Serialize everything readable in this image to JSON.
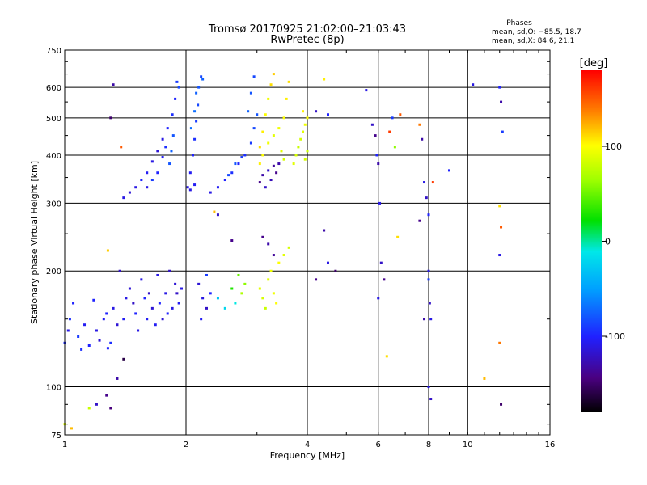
{
  "chart_data": {
    "type": "scatter",
    "title": "Tromsø 20170925 21:02:00–21:03:43",
    "subtitle": "RwPretec (8p)",
    "xlabel": "Frequency [MHz]",
    "ylabel": "Stationary phase Virtual Height [km]",
    "x_scale": "log",
    "y_scale": "log",
    "xlim": [
      1,
      16
    ],
    "ylim": [
      75,
      750
    ],
    "x_ticks": [
      1,
      2,
      4,
      6,
      8,
      10,
      16
    ],
    "y_ticks": [
      75,
      100,
      200,
      300,
      400,
      500,
      600,
      750
    ],
    "grid": true,
    "phase_info": {
      "heading": "Phases",
      "line_o": "mean, sd,O: −85.5, 18.7",
      "line_x": "mean, sd,X:  84.6, 21.1"
    },
    "colorbar": {
      "label": "[deg]",
      "range": [
        -180,
        180
      ],
      "ticks": [
        100,
        0,
        -100
      ]
    },
    "points": [
      [
        1.0,
        130,
        -95
      ],
      [
        1.02,
        140,
        -110
      ],
      [
        1.05,
        165,
        -100
      ],
      [
        1.03,
        150,
        -95
      ],
      [
        1.08,
        135,
        -90
      ],
      [
        1.1,
        125,
        -95
      ],
      [
        1.12,
        145,
        -105
      ],
      [
        1.15,
        128,
        -100
      ],
      [
        1.18,
        168,
        -100
      ],
      [
        1.2,
        140,
        -110
      ],
      [
        1.22,
        132,
        -115
      ],
      [
        1.25,
        150,
        -105
      ],
      [
        1.27,
        155,
        -100
      ],
      [
        1.28,
        126,
        -100
      ],
      [
        1.3,
        130,
        -95
      ],
      [
        1.32,
        160,
        -110
      ],
      [
        1.35,
        145,
        -115
      ],
      [
        1.37,
        200,
        -120
      ],
      [
        1.4,
        150,
        -105
      ],
      [
        1.42,
        170,
        -110
      ],
      [
        1.45,
        180,
        -115
      ],
      [
        1.48,
        165,
        -120
      ],
      [
        1.5,
        155,
        -100
      ],
      [
        1.52,
        140,
        -110
      ],
      [
        1.55,
        190,
        -110
      ],
      [
        1.58,
        170,
        -100
      ],
      [
        1.6,
        150,
        -105
      ],
      [
        1.62,
        175,
        -120
      ],
      [
        1.65,
        160,
        -115
      ],
      [
        1.68,
        145,
        -105
      ],
      [
        1.7,
        195,
        -110
      ],
      [
        1.72,
        165,
        -100
      ],
      [
        1.75,
        150,
        -115
      ],
      [
        1.78,
        175,
        -110
      ],
      [
        1.8,
        155,
        -100
      ],
      [
        1.82,
        200,
        -120
      ],
      [
        1.85,
        160,
        -110
      ],
      [
        1.88,
        185,
        -115
      ],
      [
        1.9,
        175,
        -120
      ],
      [
        1.92,
        165,
        -105
      ],
      [
        1.95,
        180,
        -110
      ],
      [
        1.27,
        95,
        -140
      ],
      [
        1.3,
        88,
        -145
      ],
      [
        1.35,
        105,
        -130
      ],
      [
        1.4,
        118,
        -160
      ],
      [
        1.2,
        90,
        -120
      ],
      [
        1.0,
        80,
        90
      ],
      [
        1.04,
        78,
        120
      ],
      [
        1.15,
        88,
        80
      ],
      [
        1.28,
        226,
        115
      ],
      [
        1.32,
        610,
        -130
      ],
      [
        1.38,
        420,
        150
      ],
      [
        1.3,
        500,
        -150
      ],
      [
        1.4,
        310,
        -110
      ],
      [
        1.45,
        320,
        -115
      ],
      [
        1.5,
        330,
        -110
      ],
      [
        1.55,
        345,
        -100
      ],
      [
        1.6,
        360,
        -105
      ],
      [
        1.65,
        385,
        -110
      ],
      [
        1.7,
        410,
        -115
      ],
      [
        1.75,
        440,
        -110
      ],
      [
        1.8,
        470,
        -100
      ],
      [
        1.85,
        510,
        -95
      ],
      [
        1.88,
        560,
        -100
      ],
      [
        1.9,
        620,
        -90
      ],
      [
        1.92,
        600,
        -85
      ],
      [
        1.84,
        410,
        -75
      ],
      [
        1.82,
        380,
        -80
      ],
      [
        1.7,
        360,
        -100
      ],
      [
        1.75,
        395,
        -105
      ],
      [
        1.6,
        330,
        -110
      ],
      [
        1.65,
        345,
        -90
      ],
      [
        1.78,
        420,
        -95
      ],
      [
        1.86,
        450,
        -80
      ],
      [
        2.02,
        330,
        -110
      ],
      [
        2.05,
        360,
        -105
      ],
      [
        2.08,
        400,
        -100
      ],
      [
        2.1,
        440,
        -95
      ],
      [
        2.12,
        490,
        -90
      ],
      [
        2.14,
        540,
        -85
      ],
      [
        2.15,
        600,
        -80
      ],
      [
        2.2,
        630,
        -75
      ],
      [
        2.06,
        470,
        -70
      ],
      [
        2.1,
        520,
        -70
      ],
      [
        2.12,
        580,
        -75
      ],
      [
        2.18,
        640,
        -85
      ],
      [
        2.05,
        325,
        -110
      ],
      [
        2.1,
        335,
        -105
      ],
      [
        2.15,
        185,
        -115
      ],
      [
        2.2,
        170,
        -110
      ],
      [
        2.25,
        160,
        -120
      ],
      [
        2.3,
        175,
        -100
      ],
      [
        2.18,
        150,
        -105
      ],
      [
        2.25,
        195,
        -90
      ],
      [
        2.3,
        320,
        -110
      ],
      [
        2.4,
        330,
        -105
      ],
      [
        2.5,
        345,
        -100
      ],
      [
        2.6,
        360,
        -95
      ],
      [
        2.7,
        380,
        -100
      ],
      [
        2.8,
        400,
        -95
      ],
      [
        2.9,
        430,
        -90
      ],
      [
        2.95,
        470,
        -85
      ],
      [
        3.0,
        510,
        -80
      ],
      [
        2.85,
        520,
        -75
      ],
      [
        2.9,
        580,
        -80
      ],
      [
        2.95,
        640,
        -85
      ],
      [
        2.75,
        395,
        -90
      ],
      [
        2.65,
        380,
        -80
      ],
      [
        2.55,
        355,
        -85
      ],
      [
        2.4,
        170,
        -30
      ],
      [
        2.5,
        160,
        -20
      ],
      [
        2.6,
        180,
        30
      ],
      [
        2.7,
        195,
        50
      ],
      [
        2.75,
        175,
        70
      ],
      [
        2.8,
        185,
        60
      ],
      [
        2.65,
        165,
        -10
      ],
      [
        2.35,
        285,
        120
      ],
      [
        2.4,
        280,
        -120
      ],
      [
        2.6,
        240,
        -140
      ],
      [
        3.05,
        420,
        110
      ],
      [
        3.1,
        460,
        105
      ],
      [
        3.15,
        510,
        100
      ],
      [
        3.2,
        560,
        95
      ],
      [
        3.25,
        610,
        110
      ],
      [
        3.3,
        650,
        115
      ],
      [
        3.05,
        380,
        105
      ],
      [
        3.1,
        400,
        100
      ],
      [
        3.2,
        430,
        95
      ],
      [
        3.3,
        450,
        90
      ],
      [
        3.4,
        470,
        95
      ],
      [
        3.5,
        500,
        100
      ],
      [
        3.55,
        560,
        105
      ],
      [
        3.6,
        620,
        110
      ],
      [
        3.45,
        410,
        90
      ],
      [
        3.5,
        390,
        85
      ],
      [
        3.05,
        340,
        -140
      ],
      [
        3.1,
        355,
        -130
      ],
      [
        3.2,
        365,
        -120
      ],
      [
        3.3,
        375,
        -135
      ],
      [
        3.35,
        360,
        -140
      ],
      [
        3.25,
        345,
        -125
      ],
      [
        3.4,
        380,
        -130
      ],
      [
        3.15,
        330,
        -120
      ],
      [
        3.05,
        180,
        90
      ],
      [
        3.1,
        170,
        85
      ],
      [
        3.15,
        160,
        80
      ],
      [
        3.2,
        190,
        90
      ],
      [
        3.3,
        175,
        95
      ],
      [
        3.35,
        165,
        100
      ],
      [
        3.25,
        200,
        95
      ],
      [
        3.4,
        210,
        100
      ],
      [
        3.5,
        220,
        90
      ],
      [
        3.6,
        230,
        85
      ],
      [
        3.1,
        245,
        -140
      ],
      [
        3.2,
        235,
        -130
      ],
      [
        3.3,
        220,
        -135
      ],
      [
        3.7,
        380,
        90
      ],
      [
        3.75,
        400,
        85
      ],
      [
        3.8,
        420,
        80
      ],
      [
        3.85,
        440,
        85
      ],
      [
        3.9,
        460,
        90
      ],
      [
        3.95,
        480,
        95
      ],
      [
        4.0,
        500,
        100
      ],
      [
        3.9,
        520,
        105
      ],
      [
        3.95,
        390,
        85
      ],
      [
        4.0,
        410,
        80
      ],
      [
        4.2,
        190,
        -140
      ],
      [
        4.4,
        255,
        -130
      ],
      [
        4.5,
        210,
        -110
      ],
      [
        4.7,
        200,
        -150
      ],
      [
        4.5,
        510,
        -100
      ],
      [
        4.2,
        520,
        -120
      ],
      [
        4.4,
        630,
        105
      ],
      [
        5.6,
        590,
        -110
      ],
      [
        5.8,
        480,
        -120
      ],
      [
        5.9,
        450,
        -140
      ],
      [
        5.95,
        400,
        -100
      ],
      [
        6.0,
        380,
        -130
      ],
      [
        6.05,
        300,
        -110
      ],
      [
        6.1,
        210,
        -120
      ],
      [
        6.2,
        190,
        -140
      ],
      [
        6.0,
        170,
        -110
      ],
      [
        6.3,
        120,
        110
      ],
      [
        6.4,
        460,
        160
      ],
      [
        6.5,
        500,
        -90
      ],
      [
        6.6,
        420,
        60
      ],
      [
        6.7,
        245,
        110
      ],
      [
        6.8,
        510,
        150
      ],
      [
        7.6,
        480,
        140
      ],
      [
        7.7,
        440,
        -130
      ],
      [
        7.8,
        340,
        -110
      ],
      [
        7.9,
        310,
        -120
      ],
      [
        8.0,
        280,
        -100
      ],
      [
        8.0,
        200,
        -110
      ],
      [
        8.0,
        190,
        -90
      ],
      [
        8.05,
        165,
        -120
      ],
      [
        8.1,
        150,
        -110
      ],
      [
        8.0,
        100,
        -110
      ],
      [
        8.1,
        93,
        -120
      ],
      [
        7.6,
        270,
        -140
      ],
      [
        7.8,
        150,
        -130
      ],
      [
        8.2,
        340,
        160
      ],
      [
        9.0,
        365,
        -100
      ],
      [
        10.3,
        610,
        -110
      ],
      [
        11.0,
        105,
        120
      ],
      [
        12.0,
        600,
        -100
      ],
      [
        12.1,
        550,
        -130
      ],
      [
        12.2,
        460,
        -90
      ],
      [
        12.0,
        295,
        110
      ],
      [
        12.1,
        260,
        150
      ],
      [
        12.0,
        220,
        -110
      ],
      [
        12.0,
        130,
        140
      ],
      [
        12.1,
        90,
        -150
      ]
    ]
  }
}
